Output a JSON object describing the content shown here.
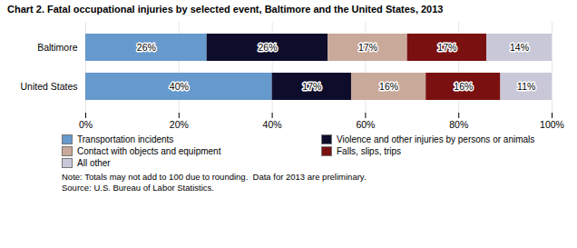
{
  "chart_data": {
    "type": "bar",
    "orientation": "horizontal",
    "stacked": true,
    "title": "Chart 2. Fatal occupational injuries by selected event, Baltimore and the United States, 2013",
    "categories": [
      "Baltimore",
      "United States"
    ],
    "series": [
      {
        "name": "Transportation incidents",
        "color": "#6699CC",
        "values": [
          26,
          40
        ],
        "value_labels": [
          "26%",
          "40%"
        ]
      },
      {
        "name": "Violence and other injuries by persons or animals",
        "color": "#0D0D2B",
        "values": [
          26,
          17
        ],
        "value_labels": [
          "26%",
          "17%"
        ]
      },
      {
        "name": "Contact with objects and equipment",
        "color": "#C9A99A",
        "values": [
          17,
          16
        ],
        "value_labels": [
          "17%",
          "16%"
        ]
      },
      {
        "name": "Falls, slips, trips",
        "color": "#7A1010",
        "values": [
          17,
          16
        ],
        "value_labels": [
          "17%",
          "16%"
        ]
      },
      {
        "name": "All other",
        "color": "#C8C8D8",
        "values": [
          14,
          11
        ],
        "value_labels": [
          "14%",
          "11%"
        ]
      }
    ],
    "xlim": [
      0,
      100
    ],
    "xticks": [
      {
        "value": 0,
        "label": "0%"
      },
      {
        "value": 20,
        "label": "20%"
      },
      {
        "value": 40,
        "label": "40%"
      },
      {
        "value": 60,
        "label": "60%"
      },
      {
        "value": 80,
        "label": "80%"
      },
      {
        "value": 100,
        "label": "100%"
      }
    ],
    "grid": true,
    "data_labels": true,
    "annotations": [
      "Note: Totals may not add to 100 due to rounding.  Data for 2013 are preliminary.",
      "Source: U.S. Bureau of Labor Statistics."
    ]
  }
}
